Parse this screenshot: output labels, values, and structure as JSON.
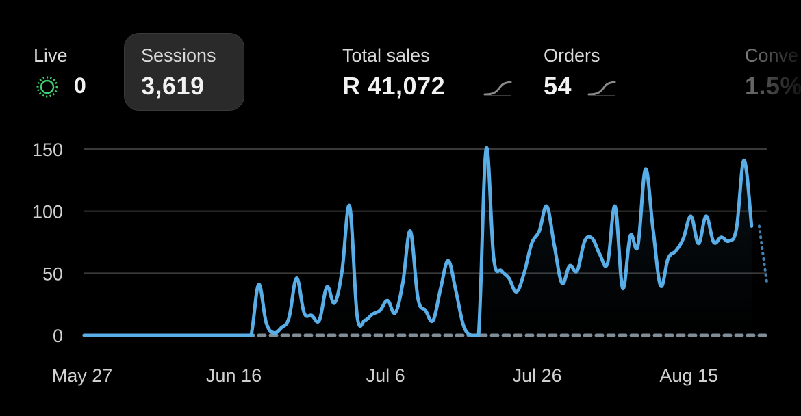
{
  "metrics": {
    "live": {
      "label": "Live",
      "value": "0"
    },
    "sessions": {
      "label": "Sessions",
      "value": "3,619"
    },
    "total_sales": {
      "label": "Total sales",
      "value": "R 41,072"
    },
    "orders": {
      "label": "Orders",
      "value": "54"
    },
    "conversion": {
      "label": "Conve",
      "value": "1.5%"
    }
  },
  "colors": {
    "line": "#5aaee8",
    "comparison": "#7f8d99",
    "grid": "#3a3a3a",
    "live_dot": "#3ecf6e",
    "axis_text": "#d0d0d0"
  },
  "chart_data": {
    "type": "line",
    "title": "",
    "xlabel": "",
    "ylabel": "",
    "ylim": [
      0,
      150
    ],
    "yticks": [
      0,
      50,
      100,
      150
    ],
    "x_tick_labels": [
      {
        "label": "May 27",
        "day": 0
      },
      {
        "label": "Jun 16",
        "day": 20
      },
      {
        "label": "Jul 6",
        "day": 40
      },
      {
        "label": "Jul 26",
        "day": 60
      },
      {
        "label": "Aug 15",
        "day": 80
      }
    ],
    "x_range_days": [
      0,
      90
    ],
    "grid": true,
    "series": [
      {
        "values": [
          0,
          0,
          0,
          0,
          0,
          0,
          0,
          0,
          0,
          0,
          0,
          0,
          0,
          0,
          0,
          0,
          0,
          0,
          0,
          0,
          0,
          0,
          0,
          41,
          10,
          2,
          6,
          14,
          46,
          18,
          16,
          12,
          39,
          26,
          52,
          104,
          15,
          12,
          17,
          20,
          28,
          18,
          42,
          84,
          30,
          20,
          12,
          38,
          60,
          36,
          8,
          0,
          0,
          150,
          62,
          52,
          46,
          35,
          50,
          74,
          84,
          104,
          72,
          42,
          56,
          52,
          76,
          78,
          65,
          58,
          104,
          38,
          80,
          72,
          134,
          86,
          40,
          62,
          68,
          78,
          96,
          74,
          96,
          75,
          79,
          76,
          86,
          141,
          88
        ],
        "start_day": 0
      },
      {
        "values": [
          88,
          43
        ],
        "start_day": 89,
        "style": "dotted"
      }
    ],
    "comparison_series": {
      "value": 0,
      "x_range_days": [
        0,
        90
      ],
      "style": "dashed"
    }
  }
}
